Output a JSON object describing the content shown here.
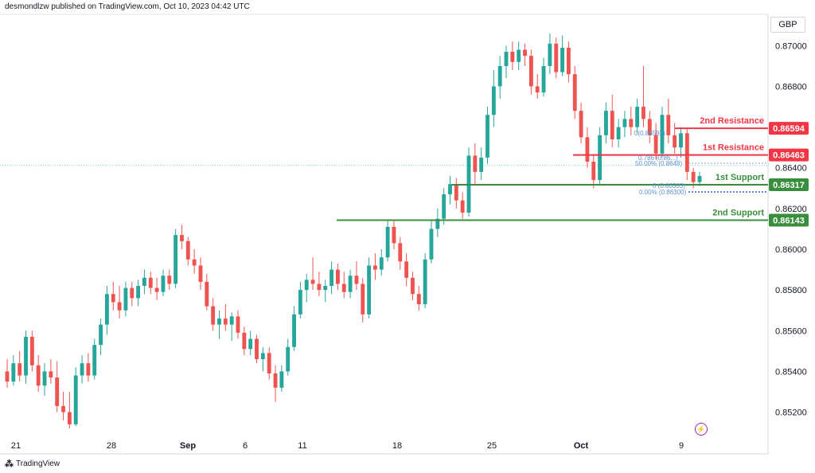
{
  "header": {
    "text": "desmondlzw published on TradingView.com, Oct 10, 2023 04:42 UTC"
  },
  "currency": "GBP",
  "footer": {
    "logo_text": "TradingView",
    "logo_icon": "tradingview-logo-icon"
  },
  "colors": {
    "up": "#26a69a",
    "down": "#ef5350",
    "resistance": "#f23645",
    "support": "#388e3c",
    "fib": "#5b8fd0"
  },
  "chart_data": {
    "type": "candlestick",
    "ylim": [
      0.8512,
      0.8706
    ],
    "y_ticks": [
      "0.87000",
      "0.86800",
      "0.86600",
      "0.86400",
      "0.86200",
      "0.86000",
      "0.85800",
      "0.85600",
      "0.85400",
      "0.85200"
    ],
    "x_ticks": [
      "21",
      "28",
      "Sep",
      "6",
      "11",
      "18",
      "25",
      "Oct",
      "9"
    ],
    "levels": [
      {
        "label": "2nd Resistance",
        "price": "0.86594",
        "kind": "resistance"
      },
      {
        "label": "1st Resistance",
        "price": "0.86463",
        "kind": "resistance"
      },
      {
        "label": "1st Support",
        "price": "0.86317",
        "kind": "support"
      },
      {
        "label": "2nd Support",
        "price": "0.86143",
        "kind": "support"
      }
    ],
    "fib_labels": [
      "0(0.86593)",
      "0.786 (0.86...)",
      "50.00% (0.8648)",
      "0 (0.86303)",
      "0.00% (0.86300)"
    ],
    "candles": [
      [
        0.854,
        0.8546,
        0.8532,
        0.8535
      ],
      [
        0.8535,
        0.8548,
        0.8533,
        0.8544
      ],
      [
        0.8544,
        0.855,
        0.8535,
        0.8538
      ],
      [
        0.8538,
        0.856,
        0.8534,
        0.8557
      ],
      [
        0.8557,
        0.856,
        0.854,
        0.8543
      ],
      [
        0.8543,
        0.8548,
        0.853,
        0.8533
      ],
      [
        0.8533,
        0.8544,
        0.8528,
        0.854
      ],
      [
        0.854,
        0.8546,
        0.8534,
        0.8537
      ],
      [
        0.8537,
        0.8545,
        0.852,
        0.8523
      ],
      [
        0.8523,
        0.853,
        0.8516,
        0.852
      ],
      [
        0.852,
        0.853,
        0.8512,
        0.8514
      ],
      [
        0.8514,
        0.8542,
        0.8513,
        0.8538
      ],
      [
        0.8538,
        0.8548,
        0.8534,
        0.8544
      ],
      [
        0.8544,
        0.8549,
        0.8535,
        0.8538
      ],
      [
        0.8538,
        0.8556,
        0.8536,
        0.8553
      ],
      [
        0.8553,
        0.8566,
        0.8548,
        0.8563
      ],
      [
        0.8563,
        0.8582,
        0.8558,
        0.8578
      ],
      [
        0.8578,
        0.8584,
        0.857,
        0.8574
      ],
      [
        0.8574,
        0.8582,
        0.8566,
        0.857
      ],
      [
        0.857,
        0.8584,
        0.8567,
        0.8581
      ],
      [
        0.8581,
        0.8584,
        0.8572,
        0.8576
      ],
      [
        0.8576,
        0.8585,
        0.8572,
        0.8582
      ],
      [
        0.8582,
        0.859,
        0.8578,
        0.8586
      ],
      [
        0.8586,
        0.8589,
        0.8578,
        0.8581
      ],
      [
        0.8581,
        0.8586,
        0.8575,
        0.8579
      ],
      [
        0.8579,
        0.859,
        0.8577,
        0.8587
      ],
      [
        0.8587,
        0.859,
        0.858,
        0.8583
      ],
      [
        0.8583,
        0.861,
        0.8581,
        0.8607
      ],
      [
        0.8607,
        0.8612,
        0.86,
        0.8604
      ],
      [
        0.8604,
        0.8606,
        0.8592,
        0.8595
      ],
      [
        0.8595,
        0.86,
        0.8588,
        0.8592
      ],
      [
        0.8592,
        0.8596,
        0.858,
        0.8584
      ],
      [
        0.8584,
        0.8588,
        0.857,
        0.8572
      ],
      [
        0.8572,
        0.8576,
        0.856,
        0.8563
      ],
      [
        0.8563,
        0.857,
        0.8556,
        0.8566
      ],
      [
        0.8566,
        0.8573,
        0.856,
        0.8563
      ],
      [
        0.8563,
        0.8569,
        0.8555,
        0.8567
      ],
      [
        0.8567,
        0.857,
        0.8556,
        0.8559
      ],
      [
        0.8559,
        0.8562,
        0.8548,
        0.8551
      ],
      [
        0.8551,
        0.856,
        0.8548,
        0.8556
      ],
      [
        0.8556,
        0.8558,
        0.8544,
        0.8546
      ],
      [
        0.8546,
        0.8552,
        0.854,
        0.8549
      ],
      [
        0.8549,
        0.8552,
        0.8536,
        0.8539
      ],
      [
        0.8539,
        0.8543,
        0.8525,
        0.8532
      ],
      [
        0.8532,
        0.8543,
        0.853,
        0.854
      ],
      [
        0.854,
        0.8556,
        0.8538,
        0.8552
      ],
      [
        0.8552,
        0.8572,
        0.855,
        0.8568
      ],
      [
        0.8568,
        0.8584,
        0.8566,
        0.858
      ],
      [
        0.858,
        0.8588,
        0.8574,
        0.8585
      ],
      [
        0.8585,
        0.8596,
        0.858,
        0.8583
      ],
      [
        0.8583,
        0.8589,
        0.8577,
        0.858
      ],
      [
        0.858,
        0.8585,
        0.8574,
        0.8582
      ],
      [
        0.8582,
        0.8594,
        0.8578,
        0.859
      ],
      [
        0.859,
        0.8593,
        0.858,
        0.8583
      ],
      [
        0.8583,
        0.8589,
        0.8576,
        0.8579
      ],
      [
        0.8579,
        0.859,
        0.8576,
        0.8587
      ],
      [
        0.8587,
        0.8594,
        0.858,
        0.8583
      ],
      [
        0.8583,
        0.8586,
        0.8564,
        0.8568
      ],
      [
        0.8568,
        0.8596,
        0.8566,
        0.8592
      ],
      [
        0.8592,
        0.8598,
        0.8585,
        0.859
      ],
      [
        0.859,
        0.86,
        0.8587,
        0.8596
      ],
      [
        0.8596,
        0.8614,
        0.8594,
        0.8611
      ],
      [
        0.8611,
        0.8614,
        0.86,
        0.8603
      ],
      [
        0.8603,
        0.8606,
        0.859,
        0.8594
      ],
      [
        0.8594,
        0.8598,
        0.8582,
        0.8586
      ],
      [
        0.8586,
        0.8589,
        0.8575,
        0.8578
      ],
      [
        0.8578,
        0.8582,
        0.857,
        0.8573
      ],
      [
        0.8573,
        0.8598,
        0.8571,
        0.8595
      ],
      [
        0.8595,
        0.8614,
        0.8593,
        0.861
      ],
      [
        0.861,
        0.862,
        0.8606,
        0.8615
      ],
      [
        0.8615,
        0.863,
        0.8612,
        0.8627
      ],
      [
        0.8627,
        0.8636,
        0.8622,
        0.8632
      ],
      [
        0.8632,
        0.8635,
        0.862,
        0.8624
      ],
      [
        0.8624,
        0.8628,
        0.8615,
        0.8618
      ],
      [
        0.8618,
        0.865,
        0.8616,
        0.8646
      ],
      [
        0.8646,
        0.8652,
        0.8632,
        0.8638
      ],
      [
        0.8638,
        0.865,
        0.8634,
        0.8645
      ],
      [
        0.8645,
        0.867,
        0.8642,
        0.8666
      ],
      [
        0.8666,
        0.8688,
        0.866,
        0.868
      ],
      [
        0.868,
        0.8695,
        0.8674,
        0.869
      ],
      [
        0.869,
        0.87,
        0.8684,
        0.8697
      ],
      [
        0.8697,
        0.8702,
        0.8688,
        0.8692
      ],
      [
        0.8692,
        0.8702,
        0.8688,
        0.8698
      ],
      [
        0.8698,
        0.8701,
        0.869,
        0.8695
      ],
      [
        0.8695,
        0.8698,
        0.8676,
        0.868
      ],
      [
        0.868,
        0.8686,
        0.8674,
        0.8677
      ],
      [
        0.8677,
        0.8694,
        0.8675,
        0.869
      ],
      [
        0.869,
        0.8706,
        0.8686,
        0.8701
      ],
      [
        0.8701,
        0.8704,
        0.8684,
        0.8687
      ],
      [
        0.8687,
        0.8705,
        0.8685,
        0.8699
      ],
      [
        0.8699,
        0.8702,
        0.8682,
        0.8686
      ],
      [
        0.8686,
        0.869,
        0.8664,
        0.8668
      ],
      [
        0.8668,
        0.8672,
        0.8652,
        0.8655
      ],
      [
        0.8655,
        0.866,
        0.864,
        0.8643
      ],
      [
        0.8643,
        0.8646,
        0.863,
        0.8634
      ],
      [
        0.8634,
        0.866,
        0.8632,
        0.8656
      ],
      [
        0.8656,
        0.8672,
        0.8652,
        0.8668
      ],
      [
        0.8668,
        0.8676,
        0.865,
        0.8654
      ],
      [
        0.8654,
        0.8664,
        0.865,
        0.866
      ],
      [
        0.866,
        0.8668,
        0.8655,
        0.8664
      ],
      [
        0.8664,
        0.867,
        0.8656,
        0.866
      ],
      [
        0.866,
        0.8674,
        0.8657,
        0.867
      ],
      [
        0.867,
        0.869,
        0.866,
        0.8664
      ],
      [
        0.8664,
        0.8668,
        0.8652,
        0.8656
      ],
      [
        0.8656,
        0.8662,
        0.8644,
        0.8647
      ],
      [
        0.8647,
        0.867,
        0.8645,
        0.8666
      ],
      [
        0.8666,
        0.8674,
        0.8652,
        0.8656
      ],
      [
        0.8656,
        0.8662,
        0.8647,
        0.865
      ],
      [
        0.865,
        0.866,
        0.8645,
        0.8657
      ],
      [
        0.8657,
        0.8659,
        0.8634,
        0.8638
      ],
      [
        0.8638,
        0.864,
        0.863,
        0.8633
      ],
      [
        0.8633,
        0.8638,
        0.8631,
        0.8636
      ]
    ]
  }
}
